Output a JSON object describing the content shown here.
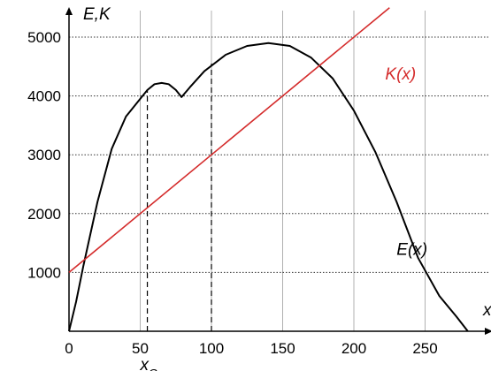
{
  "chart_data": {
    "type": "line",
    "ylabel": "E,K",
    "xlabel": "x",
    "xlim": [
      0,
      290
    ],
    "ylim": [
      0,
      5200
    ],
    "grid": true,
    "x_ticks": [
      0,
      50,
      100,
      150,
      200,
      250
    ],
    "y_ticks": [
      1000,
      2000,
      3000,
      4000,
      5000
    ],
    "x_tick_labels": [
      "0",
      "50",
      "100",
      "150",
      "200",
      "250"
    ],
    "y_tick_labels": [
      "1000",
      "2000",
      "3000",
      "4000",
      "5000"
    ],
    "series": [
      {
        "name": "E(x)",
        "color": "#000000",
        "points": [
          [
            0,
            0
          ],
          [
            5,
            500
          ],
          [
            10,
            1100
          ],
          [
            20,
            2200
          ],
          [
            30,
            3100
          ],
          [
            40,
            3650
          ],
          [
            50,
            3950
          ],
          [
            55,
            4100
          ],
          [
            60,
            4200
          ],
          [
            65,
            4220
          ],
          [
            70,
            4200
          ],
          [
            75,
            4100
          ],
          [
            79,
            3980
          ],
          [
            85,
            4150
          ],
          [
            95,
            4420
          ],
          [
            110,
            4700
          ],
          [
            125,
            4850
          ],
          [
            140,
            4900
          ],
          [
            155,
            4850
          ],
          [
            170,
            4650
          ],
          [
            185,
            4300
          ],
          [
            200,
            3750
          ],
          [
            215,
            3050
          ],
          [
            230,
            2200
          ],
          [
            245,
            1250
          ],
          [
            260,
            600
          ],
          [
            272,
            250
          ],
          [
            280,
            0
          ]
        ]
      },
      {
        "name": "K(x)",
        "color": "#d42b2b",
        "points": [
          [
            0,
            1000
          ],
          [
            225,
            5500
          ]
        ]
      }
    ],
    "annotations": [
      {
        "text": "K(x)",
        "x": 222,
        "y": 4280,
        "color": "#d42b2b"
      },
      {
        "text": "E(x)",
        "x": 230,
        "y": 1300,
        "color": "#000000"
      },
      {
        "text": "x",
        "sub": "G",
        "x": 55,
        "y": -500,
        "color": "#000000"
      }
    ],
    "vlines": [
      {
        "x": 55,
        "y_top": 4100,
        "style": "dashed"
      },
      {
        "x": 100,
        "y_top": 4550,
        "style": "dashed"
      }
    ]
  }
}
